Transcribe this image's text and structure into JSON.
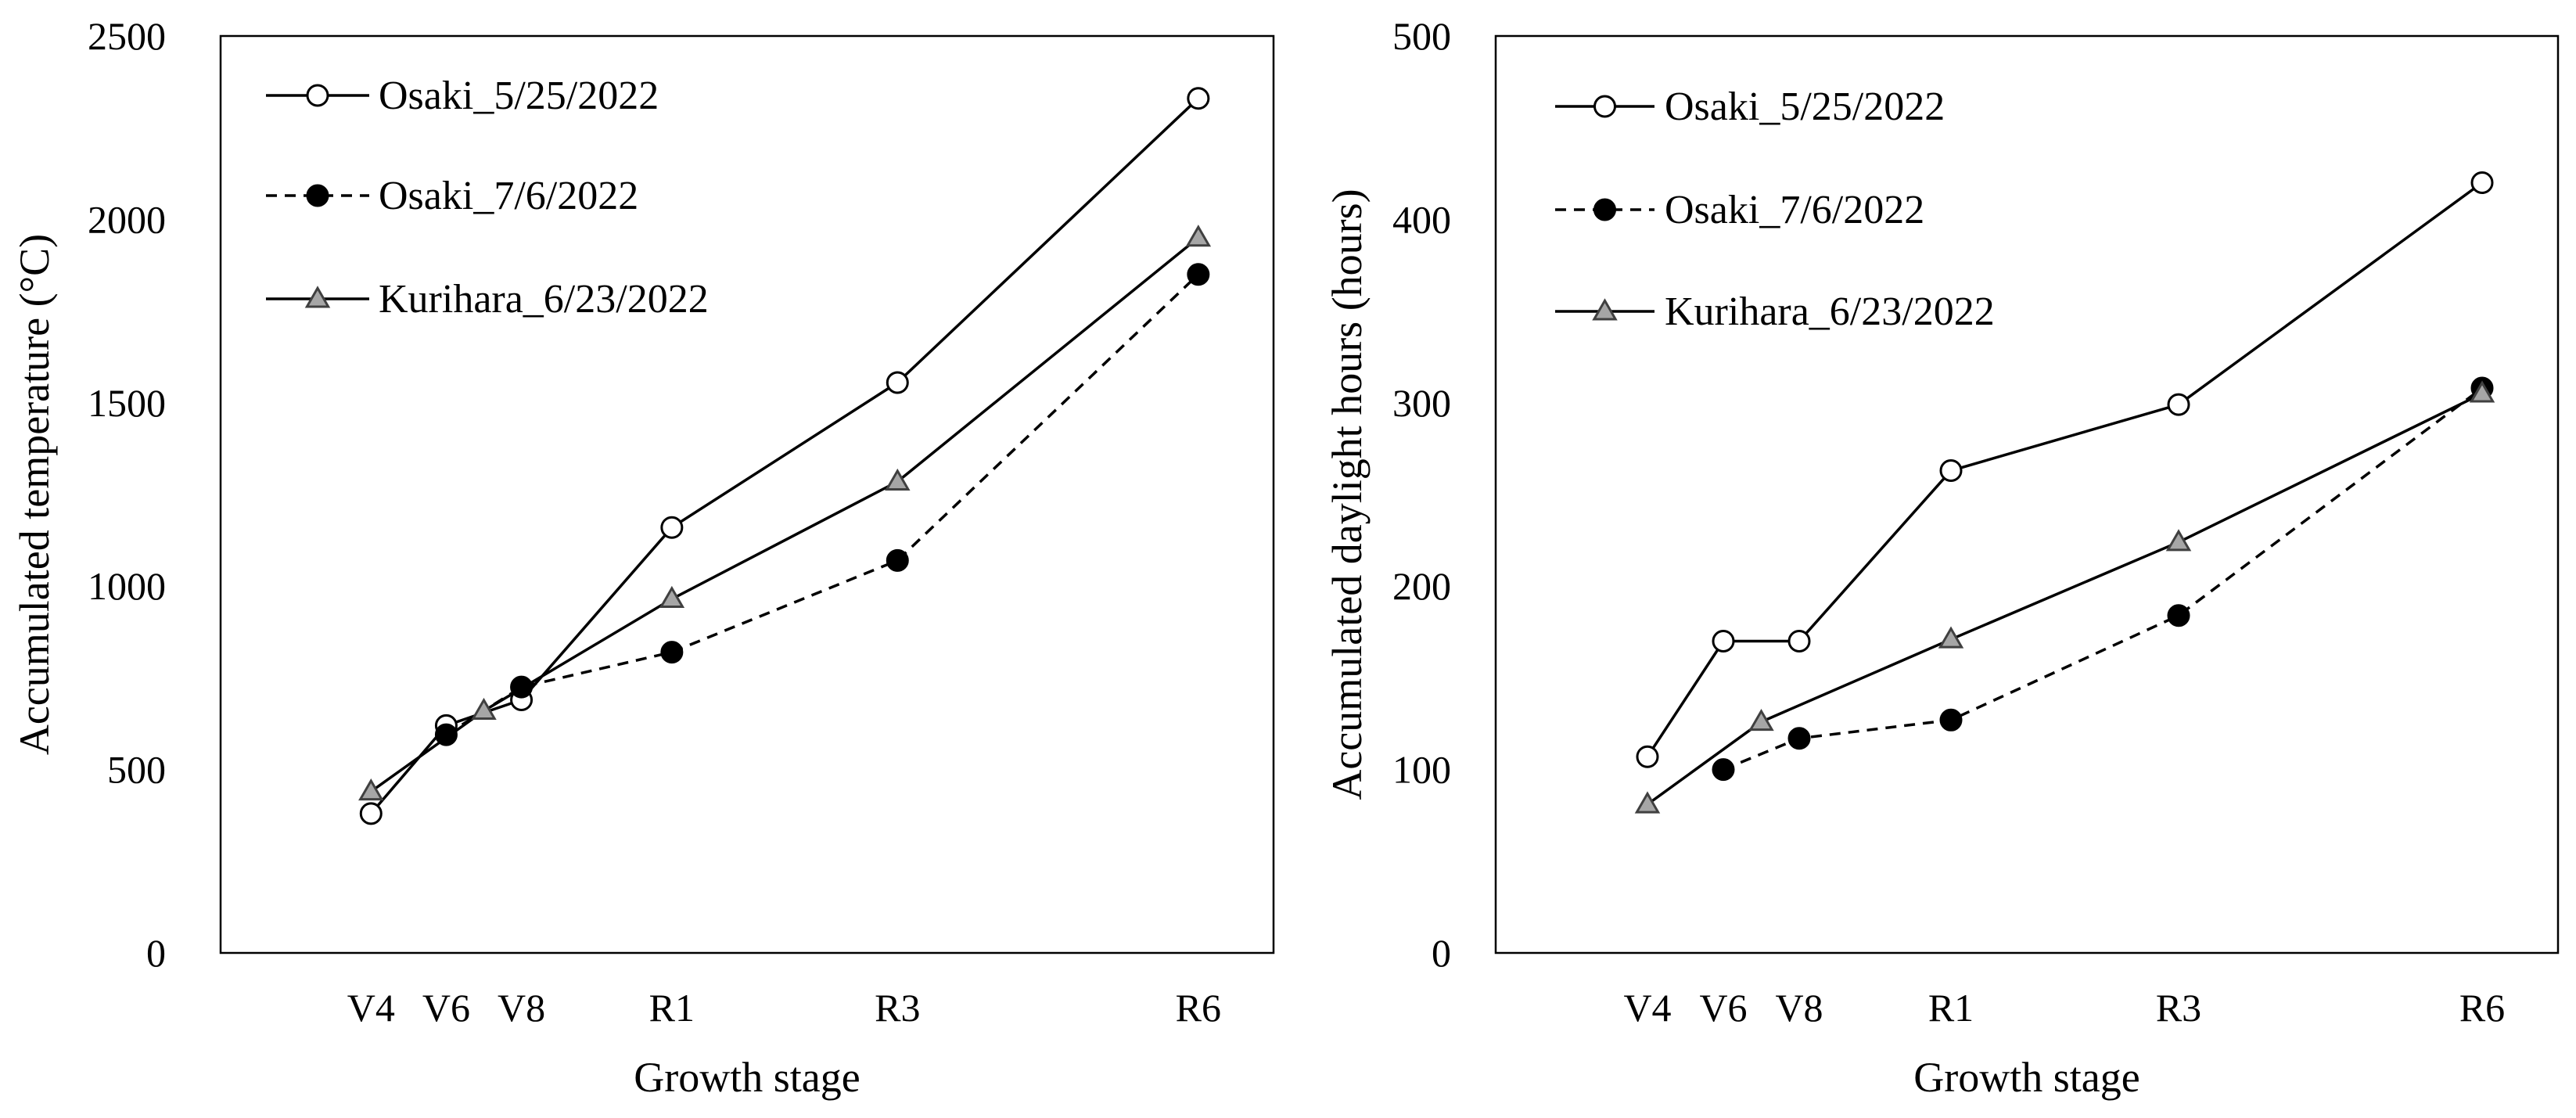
{
  "chart_data": [
    {
      "type": "line",
      "title": "",
      "xlabel": "Growth stage",
      "ylabel": "Accumulated temperature (°C)",
      "ylim": [
        0,
        2500
      ],
      "yticks": [
        "0",
        "500",
        "1000",
        "1500",
        "2000",
        "2500"
      ],
      "categories": [
        "V4",
        "V6",
        "V8",
        "R1",
        "R3",
        "R6"
      ],
      "grid": false,
      "legend_position": "top-left",
      "series": [
        {
          "name": "Osaki_5/25/2022",
          "marker": "open-circle",
          "line": "solid",
          "x": [
            1.0,
            1.5,
            2.0,
            3.0,
            4.5,
            6.5
          ],
          "values": [
            380,
            620,
            690,
            1160,
            1555,
            2330
          ]
        },
        {
          "name": "Osaki_7/6/2022",
          "marker": "filled-circle",
          "line": "dashed",
          "x": [
            1.5,
            2.0,
            3.0,
            4.5,
            6.5
          ],
          "values": [
            595,
            725,
            820,
            1070,
            1850
          ]
        },
        {
          "name": "Kurihara_6/23/2022",
          "marker": "gray-triangle",
          "line": "solid",
          "x": [
            1.0,
            1.75,
            3.0,
            4.5,
            6.5
          ],
          "values": [
            440,
            660,
            965,
            1285,
            1950
          ]
        }
      ]
    },
    {
      "type": "line",
      "title": "",
      "xlabel": "Growth stage",
      "ylabel": "Accumulated daylight hours (hours)",
      "ylim": [
        0,
        500
      ],
      "yticks": [
        "0",
        "100",
        "200",
        "300",
        "400",
        "500"
      ],
      "categories": [
        "V4",
        "V6",
        "V8",
        "R1",
        "R3",
        "R6"
      ],
      "grid": false,
      "legend_position": "top-left",
      "series": [
        {
          "name": "Osaki_5/25/2022",
          "marker": "open-circle",
          "line": "solid",
          "x": [
            1.0,
            1.5,
            2.0,
            3.0,
            4.5,
            6.5
          ],
          "values": [
            107,
            170,
            170,
            263,
            299,
            420
          ]
        },
        {
          "name": "Osaki_7/6/2022",
          "marker": "filled-circle",
          "line": "dashed",
          "x": [
            1.5,
            2.0,
            3.0,
            4.5,
            6.5
          ],
          "values": [
            100,
            117,
            127,
            184,
            308
          ]
        },
        {
          "name": "Kurihara_6/23/2022",
          "marker": "gray-triangle",
          "line": "solid",
          "x": [
            1.0,
            1.75,
            3.0,
            4.5,
            6.5
          ],
          "values": [
            81,
            126,
            171,
            224,
            305
          ]
        }
      ]
    }
  ]
}
